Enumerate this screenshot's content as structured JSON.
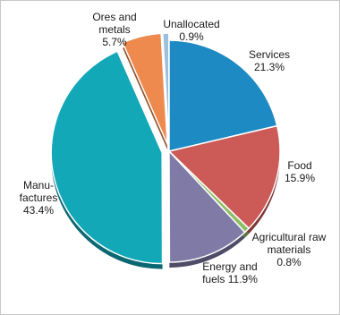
{
  "chart_data": {
    "type": "pie",
    "title": "",
    "unit": "%",
    "slices": [
      {
        "name": "Services",
        "label_lines": [
          "Services",
          "21.3%"
        ],
        "value": 21.3,
        "color": "#1e8ac4",
        "exploded": false
      },
      {
        "name": "Food",
        "label_lines": [
          "Food",
          "15.9%"
        ],
        "value": 15.9,
        "color": "#cc5b58",
        "exploded": false
      },
      {
        "name": "Agricultural raw materials",
        "label_lines": [
          "Agricultural raw",
          "materials",
          "0.8%"
        ],
        "value": 0.8,
        "color": "#8fbe67",
        "exploded": false
      },
      {
        "name": "Energy and fuels",
        "label_lines": [
          "Energy and",
          "fuels 11.9%"
        ],
        "value": 11.9,
        "color": "#7f7aa6",
        "exploded": false
      },
      {
        "name": "Manufactures",
        "label_lines": [
          "Manu-",
          "factures",
          "43.4%"
        ],
        "value": 43.4,
        "color": "#12a8b8",
        "exploded": true
      },
      {
        "name": "Ores and metals",
        "label_lines": [
          "Ores and",
          "metals",
          "5.7%"
        ],
        "value": 5.7,
        "color": "#ee8a4e",
        "exploded": true
      },
      {
        "name": "Unallocated",
        "label_lines": [
          "Unallocated",
          "0.9%"
        ],
        "value": 0.9,
        "color": "#9bbfdc",
        "exploded": true
      }
    ]
  }
}
